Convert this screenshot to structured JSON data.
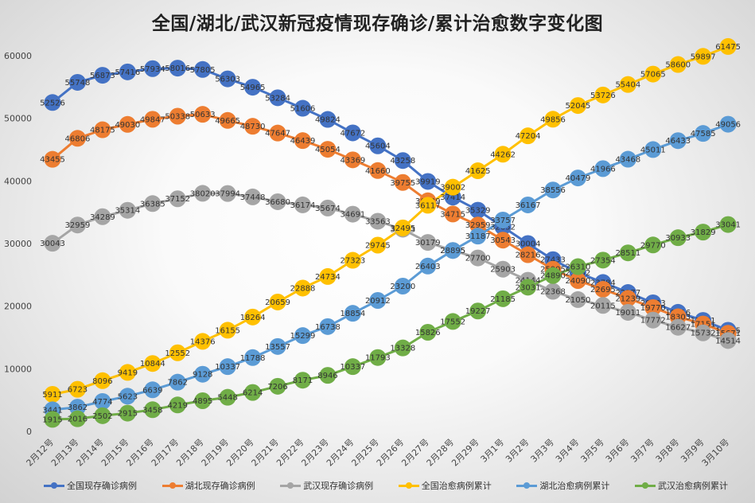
{
  "chart_data": {
    "type": "line",
    "title": "全国/湖北/武汉新冠疫情现存确诊/累计治愈数字变化图",
    "xlabel": "",
    "ylabel": "",
    "categories": [
      "2月12号",
      "2月13号",
      "2月14号",
      "2月15号",
      "2月16号",
      "2月17号",
      "2月18号",
      "2月19号",
      "2月20号",
      "2月21号",
      "2月22号",
      "2月23号",
      "2月24号",
      "2月25号",
      "2月26号",
      "2月27号",
      "2月28号",
      "2月29号",
      "3月1号",
      "3月2号",
      "3月3号",
      "3月4号",
      "3月5号",
      "3月6号",
      "3月7号",
      "3月8号",
      "3月9号",
      "3月10号"
    ],
    "ylim": [
      0,
      60000
    ],
    "yticks": [
      "0",
      "10000",
      "20000",
      "30000",
      "40000",
      "50000",
      "60000"
    ],
    "grid": false,
    "legend_position": "bottom",
    "series": [
      {
        "name": "全国现存确诊病例",
        "color": "#4472C4",
        "values": [
          52526,
          55748,
          56873,
          57416,
          57934,
          58016,
          57805,
          56303,
          54965,
          53284,
          51606,
          49824,
          47672,
          45604,
          43258,
          39919,
          37414,
          35329,
          32652,
          30004,
          27433,
          25352,
          23784,
          22177,
          20533,
          19016,
          17721,
          16145
        ]
      },
      {
        "name": "湖北现存确诊病例",
        "color": "#ED7D31",
        "values": [
          43455,
          46806,
          48175,
          49030,
          49847,
          50338,
          50633,
          49665,
          48730,
          47647,
          46439,
          45054,
          43369,
          41660,
          39755,
          36829,
          34715,
          32959,
          30543,
          28216,
          25905,
          24090,
          22695,
          21239,
          19770,
          18303,
          17151,
          15671
        ]
      },
      {
        "name": "武汉现存确诊病例",
        "color": "#A5A5A5",
        "values": [
          30043,
          32959,
          34289,
          35314,
          36385,
          37152,
          38020,
          37994,
          37448,
          36680,
          36174,
          35674,
          34691,
          33563,
          32293,
          30179,
          28895,
          27700,
          25903,
          24144,
          22368,
          21050,
          20115,
          19011,
          17772,
          16627,
          15732,
          14514
        ]
      },
      {
        "name": "全国治愈病例累计",
        "color": "#FFC000",
        "values": [
          5911,
          6723,
          8096,
          9419,
          10844,
          12552,
          14376,
          16155,
          18264,
          20659,
          22888,
          24734,
          27323,
          29745,
          32495,
          36117,
          39002,
          41625,
          44262,
          47204,
          49856,
          52045,
          53726,
          55404,
          57065,
          58600,
          59897,
          61475
        ]
      },
      {
        "name": "湖北治愈病例累计",
        "color": "#5B9BD5",
        "values": [
          3441,
          3862,
          4774,
          5623,
          6639,
          7862,
          9128,
          10337,
          11788,
          13557,
          15299,
          16738,
          18854,
          20912,
          23200,
          26403,
          28895,
          31187,
          33757,
          36167,
          38556,
          40479,
          41966,
          43468,
          45011,
          46433,
          47585,
          49056
        ]
      },
      {
        "name": "武汉治愈病例累计",
        "color": "#70AD47",
        "values": [
          1915,
          2016,
          2502,
          2915,
          3458,
          4219,
          4895,
          5448,
          6214,
          7206,
          8171,
          8946,
          10337,
          11793,
          13328,
          15826,
          17552,
          19227,
          21185,
          23031,
          24890,
          26310,
          27354,
          28511,
          29770,
          30933,
          31829,
          33041
        ]
      }
    ]
  }
}
